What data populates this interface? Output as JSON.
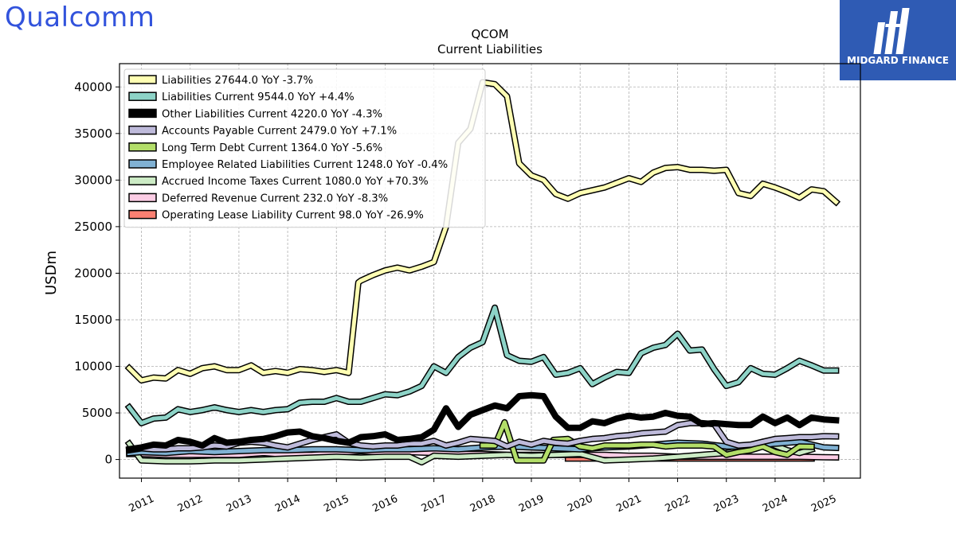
{
  "logos": {
    "left_text": "Qualcomm",
    "right_text": "MIDGARD FINANCE",
    "left_color": "#3253DC",
    "right_bg": "#2F5BB4"
  },
  "chart_data": {
    "type": "line",
    "title": "QCOM",
    "subtitle": "Current  Liabilities",
    "ylabel": "USDm",
    "xlabel": "",
    "xlim": [
      2010.55,
      2025.75
    ],
    "ylim": [
      -2000,
      42500
    ],
    "y_ticks": [
      0,
      5000,
      10000,
      15000,
      20000,
      25000,
      30000,
      35000,
      40000
    ],
    "x_ticks": [
      2011,
      2012,
      2013,
      2014,
      2015,
      2016,
      2017,
      2018,
      2019,
      2020,
      2021,
      2022,
      2023,
      2024,
      2025
    ],
    "grid": true,
    "legend_position": "top-left",
    "series": [
      {
        "name": "Liabilities",
        "label": "Liabilities  27644.0 YoY -3.7%",
        "color": "#FFFFB3",
        "width": 5,
        "x": [
          2010.75,
          2011.0,
          2011.25,
          2011.5,
          2011.75,
          2012.0,
          2012.25,
          2012.5,
          2012.75,
          2013.0,
          2013.25,
          2013.5,
          2013.75,
          2014.0,
          2014.25,
          2014.5,
          2014.75,
          2015.0,
          2015.25,
          2015.45,
          2015.5,
          2015.75,
          2016.0,
          2016.25,
          2016.5,
          2016.75,
          2017.0,
          2017.25,
          2017.5,
          2017.75,
          2018.0,
          2018.25,
          2018.5,
          2018.75,
          2019.0,
          2019.25,
          2019.5,
          2019.75,
          2020.0,
          2020.25,
          2020.5,
          2020.75,
          2021.0,
          2021.25,
          2021.5,
          2021.75,
          2022.0,
          2022.25,
          2022.5,
          2022.75,
          2023.0,
          2023.25,
          2023.5,
          2023.75,
          2024.0,
          2024.25,
          2024.5,
          2024.75,
          2025.0,
          2025.25
        ],
        "y": [
          9800,
          8500,
          8800,
          8700,
          9600,
          9200,
          9800,
          10000,
          9600,
          9600,
          10100,
          9300,
          9500,
          9300,
          9700,
          9600,
          9400,
          9600,
          9300,
          19000,
          19200,
          19800,
          20300,
          20600,
          20300,
          20700,
          21200,
          25000,
          34000,
          35500,
          40500,
          40300,
          39000,
          31800,
          30500,
          30000,
          28500,
          28000,
          28600,
          28900,
          29200,
          29700,
          30200,
          29800,
          30800,
          31300,
          31400,
          31100,
          31100,
          31000,
          31100,
          28600,
          28300,
          29600,
          29200,
          28700,
          28100,
          29000,
          28800,
          27644
        ]
      },
      {
        "name": "Liabilities Current",
        "label": "Liabilities Current  9544.0 YoY +4.4%",
        "color": "#8DD3C7",
        "width": 5,
        "x": [
          2010.75,
          2011.0,
          2011.25,
          2011.5,
          2011.75,
          2012.0,
          2012.25,
          2012.5,
          2012.75,
          2013.0,
          2013.25,
          2013.5,
          2013.75,
          2014.0,
          2014.25,
          2014.5,
          2014.75,
          2015.0,
          2015.25,
          2015.5,
          2015.75,
          2016.0,
          2016.25,
          2016.5,
          2016.75,
          2017.0,
          2017.25,
          2017.5,
          2017.75,
          2018.0,
          2018.25,
          2018.5,
          2018.75,
          2019.0,
          2019.25,
          2019.5,
          2019.75,
          2020.0,
          2020.25,
          2020.5,
          2020.75,
          2021.0,
          2021.25,
          2021.5,
          2021.75,
          2022.0,
          2022.25,
          2022.5,
          2022.75,
          2023.0,
          2023.25,
          2023.5,
          2023.75,
          2024.0,
          2024.25,
          2024.5,
          2024.75,
          2025.0,
          2025.25
        ],
        "y": [
          5600,
          3900,
          4400,
          4500,
          5400,
          5100,
          5300,
          5600,
          5300,
          5100,
          5300,
          5100,
          5300,
          5400,
          6100,
          6200,
          6200,
          6600,
          6200,
          6200,
          6600,
          7000,
          6900,
          7300,
          7900,
          10000,
          9300,
          11000,
          12000,
          12600,
          16300,
          11200,
          10600,
          10500,
          11000,
          9100,
          9300,
          9800,
          8100,
          8800,
          9400,
          9300,
          11400,
          12000,
          12300,
          13500,
          11700,
          11800,
          9700,
          7900,
          8300,
          9800,
          9200,
          9100,
          9800,
          10600,
          10100,
          9544,
          9544
        ]
      },
      {
        "name": "Other Liabilities Current",
        "label": "Other Liabilities Current  4220.0 YoY -4.3%",
        "color": "#000000",
        "width": 8,
        "x": [
          2010.75,
          2011.0,
          2011.25,
          2011.5,
          2011.75,
          2012.0,
          2012.25,
          2012.5,
          2012.75,
          2013.0,
          2013.25,
          2013.5,
          2013.75,
          2014.0,
          2014.25,
          2014.5,
          2014.75,
          2015.0,
          2015.25,
          2015.5,
          2015.75,
          2016.0,
          2016.25,
          2016.5,
          2016.75,
          2017.0,
          2017.25,
          2017.5,
          2017.75,
          2018.0,
          2018.25,
          2018.5,
          2018.75,
          2019.0,
          2019.25,
          2019.5,
          2019.75,
          2020.0,
          2020.25,
          2020.5,
          2020.75,
          2021.0,
          2021.25,
          2021.5,
          2021.75,
          2022.0,
          2022.25,
          2022.5,
          2022.75,
          2023.0,
          2023.25,
          2023.5,
          2023.75,
          2024.0,
          2024.25,
          2024.5,
          2024.75,
          2025.0,
          2025.25
        ],
        "y": [
          1100,
          1300,
          1600,
          1500,
          2100,
          1900,
          1500,
          2300,
          1800,
          1900,
          2100,
          2200,
          2500,
          2900,
          3000,
          2500,
          2300,
          2000,
          1800,
          2400,
          2500,
          2700,
          2100,
          2200,
          2400,
          3200,
          5500,
          3500,
          4800,
          5300,
          5800,
          5500,
          6800,
          6900,
          6800,
          4600,
          3400,
          3400,
          4100,
          3900,
          4400,
          4700,
          4500,
          4600,
          5000,
          4700,
          4600,
          3800,
          3900,
          3800,
          3700,
          3700,
          4600,
          3900,
          4500,
          3700,
          4500,
          4300,
          4220
        ]
      },
      {
        "name": "Accounts Payable Current",
        "label": "Accounts Payable Current  2479.0 YoY +7.1%",
        "color": "#BEBADA",
        "width": 5,
        "x": [
          2010.75,
          2011.0,
          2011.25,
          2011.5,
          2011.75,
          2012.0,
          2012.25,
          2012.5,
          2012.75,
          2013.0,
          2013.25,
          2013.5,
          2013.75,
          2014.0,
          2014.25,
          2014.5,
          2014.75,
          2015.0,
          2015.25,
          2015.5,
          2015.75,
          2016.0,
          2016.25,
          2016.5,
          2016.75,
          2017.0,
          2017.25,
          2017.5,
          2017.75,
          2018.0,
          2018.25,
          2018.5,
          2018.75,
          2019.0,
          2019.25,
          2019.5,
          2019.75,
          2020.0,
          2020.25,
          2020.5,
          2020.75,
          2021.0,
          2021.25,
          2021.5,
          2021.75,
          2022.0,
          2022.25,
          2022.5,
          2022.75,
          2023.0,
          2023.25,
          2023.5,
          2023.75,
          2024.0,
          2024.25,
          2024.5,
          2024.75,
          2025.0,
          2025.25
        ],
        "y": [
          1000,
          1200,
          1100,
          1100,
          1200,
          1200,
          1300,
          1500,
          1400,
          1800,
          1900,
          1800,
          1500,
          1300,
          1700,
          2100,
          2400,
          2700,
          1800,
          1500,
          1400,
          1500,
          1500,
          1700,
          1700,
          2000,
          1500,
          1800,
          2200,
          2100,
          2000,
          1400,
          1900,
          1600,
          2000,
          1800,
          1700,
          2000,
          2200,
          2300,
          2500,
          2600,
          2800,
          2900,
          3000,
          3700,
          3900,
          3900,
          3800,
          1900,
          1500,
          1600,
          1900,
          2200,
          2300,
          2400,
          2400,
          2500,
          2479
        ]
      },
      {
        "name": "Long Term Debt Current",
        "label": "Long Term Debt Current  1364.0 YoY -5.6%",
        "color": "#B3DE69",
        "width": 5,
        "x": [
          2018.0,
          2018.25,
          2018.45,
          2018.7,
          2019.0,
          2019.25,
          2019.45,
          2019.75,
          2020.0,
          2020.25,
          2020.5,
          2020.75,
          2021.0,
          2021.25,
          2021.5,
          2021.75,
          2022.0,
          2022.25,
          2022.5,
          2022.75,
          2023.0,
          2023.25,
          2023.5,
          2023.75,
          2024.0,
          2024.25,
          2024.5,
          2024.75
        ],
        "y": [
          1500,
          1500,
          4000,
          -100,
          -100,
          -100,
          2100,
          2200,
          1400,
          1200,
          1500,
          1500,
          1500,
          1600,
          1600,
          1400,
          1500,
          1500,
          1500,
          1400,
          500,
          800,
          1000,
          1400,
          800,
          500,
          1400,
          1364
        ]
      },
      {
        "name": "Employee Related Liabilities Current",
        "label": "Employee Related Liabilities Current  1248.0 YoY -0.4%",
        "color": "#80B1D3",
        "width": 5,
        "x": [
          2010.75,
          2011.0,
          2011.5,
          2012.0,
          2012.5,
          2013.0,
          2013.5,
          2014.0,
          2014.5,
          2015.0,
          2015.5,
          2016.0,
          2016.5,
          2017.0,
          2017.5,
          2018.0,
          2018.5,
          2019.0,
          2019.5,
          2020.0,
          2020.5,
          2021.0,
          2021.5,
          2022.0,
          2022.5,
          2023.0,
          2023.5,
          2024.0,
          2024.5,
          2025.0,
          2025.25
        ],
        "y": [
          700,
          800,
          700,
          900,
          800,
          900,
          1000,
          1000,
          1100,
          1100,
          1000,
          1100,
          1100,
          1200,
          1100,
          1300,
          1400,
          1300,
          1200,
          1100,
          1300,
          1400,
          1600,
          1800,
          1700,
          1400,
          1400,
          1700,
          1900,
          1300,
          1248
        ]
      },
      {
        "name": "Accrued Income Taxes Current",
        "label": "Accrued Income Taxes Current  1080.0 YoY +70.3%",
        "color": "#CCEBC5",
        "width": 5,
        "x": [
          2010.75,
          2011.0,
          2011.5,
          2012.0,
          2012.5,
          2013.0,
          2013.5,
          2014.0,
          2014.5,
          2015.0,
          2015.5,
          2016.0,
          2016.5,
          2016.75,
          2017.0,
          2017.5,
          2018.0,
          2018.5,
          2019.0,
          2019.5,
          2020.0,
          2020.5,
          2021.0,
          2021.5,
          2022.0,
          2022.5,
          2023.0,
          2023.5,
          2023.75,
          2024.0,
          2024.25,
          2024.5,
          2024.75
        ],
        "y": [
          1700,
          -100,
          -200,
          -200,
          -100,
          -100,
          0,
          100,
          200,
          300,
          200,
          300,
          300,
          -300,
          400,
          300,
          400,
          500,
          400,
          500,
          600,
          -100,
          0,
          100,
          300,
          500,
          700,
          1200,
          1900,
          1500,
          1000,
          700,
          1080
        ]
      },
      {
        "name": "Deferred Revenue Current",
        "label": "Deferred Revenue Current  232.0 YoY -8.3%",
        "color": "#FCCDE5",
        "width": 5,
        "x": [
          2010.75,
          2011.0,
          2011.5,
          2012.0,
          2012.5,
          2013.0,
          2013.5,
          2014.0,
          2014.5,
          2015.0,
          2015.5,
          2016.0,
          2016.5,
          2017.0,
          2017.5,
          2018.0,
          2018.5,
          2019.0,
          2019.5,
          2020.0,
          2020.5,
          2021.0,
          2021.5,
          2022.0,
          2022.5,
          2023.0,
          2023.5,
          2024.0,
          2024.5,
          2025.0,
          2025.25
        ],
        "y": [
          600,
          600,
          500,
          500,
          500,
          500,
          700,
          500,
          500,
          700,
          900,
          700,
          800,
          700,
          600,
          600,
          500,
          500,
          500,
          500,
          500,
          400,
          400,
          300,
          300,
          300,
          300,
          300,
          300,
          250,
          232
        ]
      },
      {
        "name": "Operating Lease Liability Current",
        "label": "Operating Lease Liability Current  98.0 YoY -26.9%",
        "color": "#FB8072",
        "width": 5,
        "x": [
          2019.75,
          2020.25,
          2020.75,
          2021.25,
          2021.75,
          2022.25,
          2022.75,
          2023.25,
          2023.75,
          2024.25,
          2024.75
        ],
        "y": [
          98,
          98,
          98,
          98,
          98,
          98,
          98,
          98,
          98,
          98,
          98
        ]
      }
    ]
  }
}
